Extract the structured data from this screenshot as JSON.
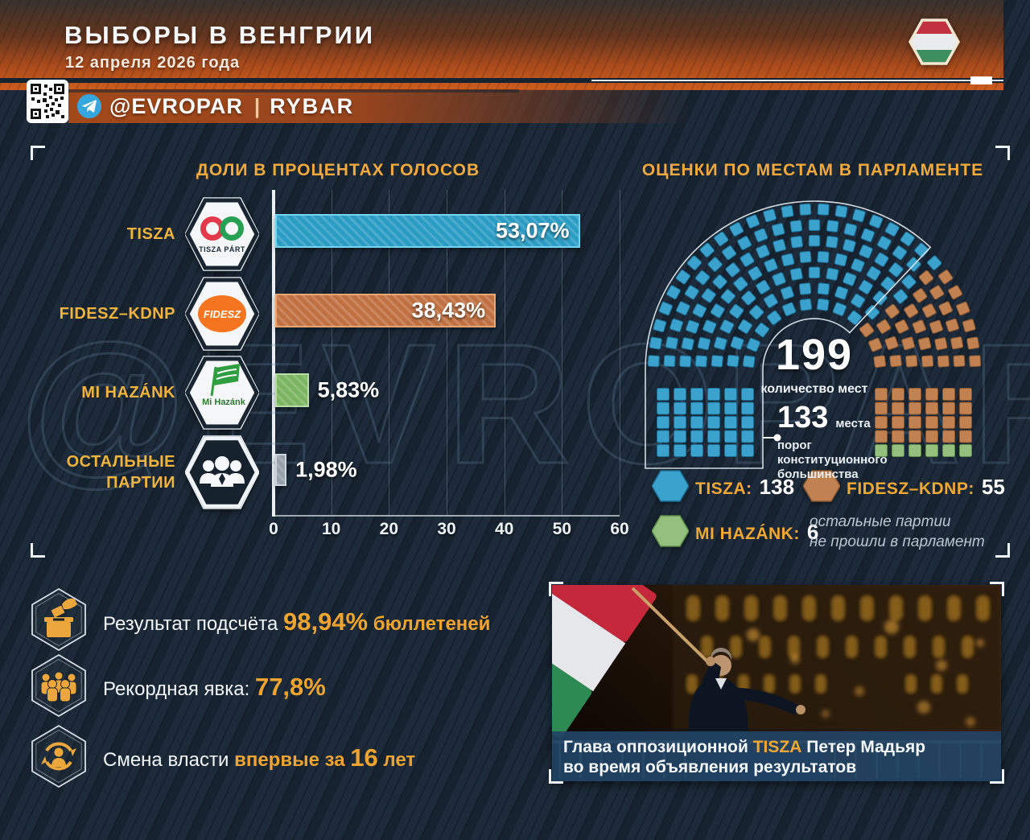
{
  "header": {
    "title": "ВЫБОРЫ В ВЕНГРИИ",
    "date": "12 апреля 2026 года",
    "telegram_handle": "@EVROPAR",
    "divider": "|",
    "brand": "RYBAR"
  },
  "watermark": "@EVROPAR",
  "chart_data": [
    {
      "type": "bar",
      "orientation": "horizontal",
      "title": "ДОЛИ В ПРОЦЕНТАХ ГОЛОСОВ",
      "categories": [
        "TISZA",
        "FIDESZ–KDNP",
        "MI HAZÁNK",
        "ОСТАЛЬНЫЕ ПАРТИИ"
      ],
      "values": [
        53.07,
        38.43,
        5.83,
        1.98
      ],
      "value_labels": [
        "53,07%",
        "38,43%",
        "5,83%",
        "1,98%"
      ],
      "colors": [
        "#2b9cc4",
        "#c17141",
        "#7cb562",
        "#97a1ab"
      ],
      "border_colors": [
        "#74d3ef",
        "#eaa671",
        "#b6dda3",
        "#cdd6de"
      ],
      "xlim": [
        0,
        60
      ],
      "xticks": [
        "0",
        "10",
        "20",
        "30",
        "40",
        "50",
        "60"
      ],
      "grid": true,
      "logos": {
        "tisza": "TISZA PÁRT",
        "fidesz": "FIDESZ",
        "mihazank": "Mi Hazánk"
      }
    },
    {
      "type": "parliament",
      "title": "ОЦЕНКИ ПО МЕСТАМ В ПАРЛАМЕНТЕ",
      "total_seats": 199,
      "total_label": "199",
      "total_caption": "количество мест",
      "threshold_seats": 133,
      "threshold_value": "133",
      "threshold_unit": "места",
      "threshold_caption": "порог конституционного большинства",
      "series": [
        {
          "name": "TISZA",
          "label": "TISZA:",
          "seats": 138,
          "seats_label": "138",
          "color": "#3ba1cd",
          "stroke": "#1b6d93"
        },
        {
          "name": "FIDESZ–KDNP",
          "label": "FIDESZ–KDNP:",
          "seats": 55,
          "seats_label": "55",
          "color": "#c28150",
          "stroke": "#8a5730"
        },
        {
          "name": "MI HAZÁNK",
          "label": "MI HAZÁNK:",
          "seats": 6,
          "seats_label": "6",
          "color": "#93c07c",
          "stroke": "#5e8c49"
        }
      ],
      "note_line1": "остальные партии",
      "note_line2": "не прошли в парламент"
    }
  ],
  "facts": [
    {
      "parts": [
        "Результат подсчёта ",
        "98,94%",
        " бюллетеней"
      ]
    },
    {
      "parts": [
        "Рекордная явка: ",
        "77,8%"
      ]
    },
    {
      "parts": [
        "Смена власти ",
        "впервые за ",
        "16",
        " лет"
      ]
    }
  ],
  "photo": {
    "caption_p1": "Глава оппозиционной ",
    "caption_p2": "TISZA",
    "caption_p3": " Петер Мадьяр",
    "caption_line2": "во время объявления результатов"
  }
}
